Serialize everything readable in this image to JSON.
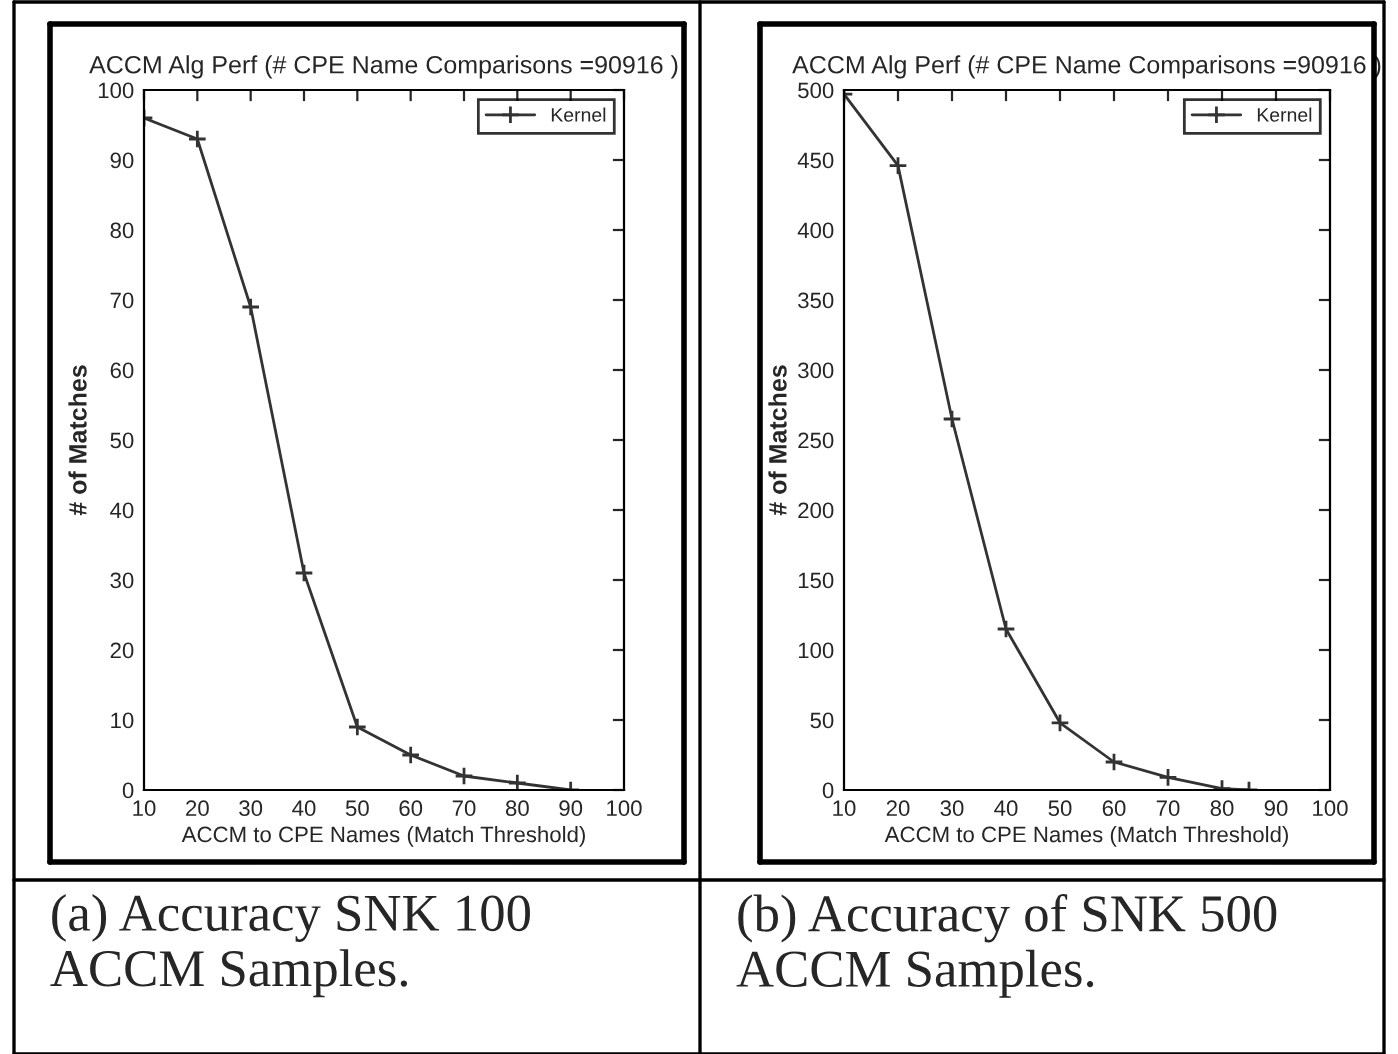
{
  "chart_data": [
    {
      "type": "line",
      "title": "ACCM Alg Perf (# CPE Name Comparisons =90916 )",
      "xlabel": "ACCM to CPE Names (Match Threshold)",
      "ylabel": "# of Matches",
      "x": [
        10,
        20,
        30,
        40,
        50,
        60,
        70,
        80,
        90
      ],
      "series": [
        {
          "name": "Kernel",
          "color": "#333333",
          "values": [
            96,
            93,
            69,
            31,
            9,
            5,
            2,
            1,
            0
          ]
        }
      ],
      "xlim": [
        10,
        100
      ],
      "xticks": [
        10,
        20,
        30,
        40,
        50,
        60,
        70,
        80,
        90,
        100
      ],
      "ylim": [
        0,
        100
      ],
      "yticks": [
        0,
        10,
        20,
        30,
        40,
        50,
        60,
        70,
        80,
        90,
        100
      ],
      "marker": "cross",
      "line_style": "solid",
      "legend": "top right",
      "grid": false,
      "annotations": [
        "(a) Accuracy SNK 100 ACCM Samples."
      ]
    },
    {
      "type": "line",
      "title": "ACCM Alg Perf (# CPE Name Comparisons =90916 )",
      "xlabel": "ACCM to CPE Names (Match Threshold)",
      "ylabel": "# of Matches",
      "x": [
        10,
        20,
        30,
        40,
        50,
        60,
        70,
        80,
        85
      ],
      "series": [
        {
          "name": "Kernel",
          "color": "#333333",
          "values": [
            497,
            446,
            265,
            115,
            48,
            20,
            9,
            1,
            0
          ]
        }
      ],
      "xlim": [
        10,
        100
      ],
      "xticks": [
        10,
        20,
        30,
        40,
        50,
        60,
        70,
        80,
        90,
        100
      ],
      "ylim": [
        0,
        500
      ],
      "yticks": [
        0,
        50,
        100,
        150,
        200,
        250,
        300,
        350,
        400,
        450,
        500
      ],
      "marker": "cross",
      "line_style": "solid",
      "legend": "top right",
      "grid": false,
      "annotations": [
        "(b) Accuracy of SNK 500 ACCM Samples."
      ]
    }
  ]
}
